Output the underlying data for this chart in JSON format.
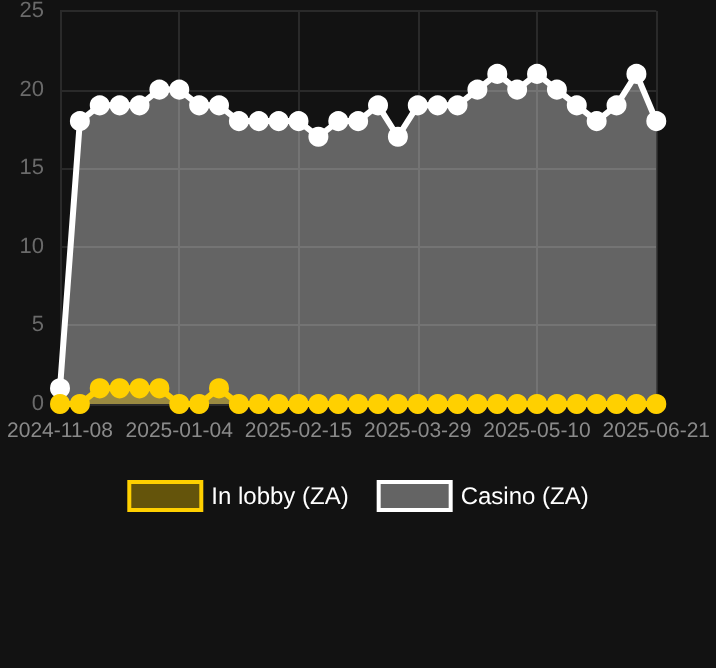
{
  "chart_data": {
    "type": "area",
    "categories": [
      "2024-11-08",
      null,
      null,
      null,
      null,
      null,
      "2025-01-04",
      null,
      null,
      null,
      null,
      null,
      "2025-02-15",
      null,
      null,
      null,
      null,
      null,
      "2025-03-29",
      null,
      null,
      null,
      null,
      null,
      "2025-05-10",
      null,
      null,
      null,
      null,
      null,
      "2025-06-21"
    ],
    "series": [
      {
        "name": "In lobby (ZA)",
        "color": "#ffd000",
        "values": [
          0,
          0,
          1,
          1,
          1,
          1,
          0,
          0,
          1,
          0,
          0,
          0,
          0,
          0,
          0,
          0,
          0,
          0,
          0,
          0,
          0,
          0,
          0,
          0,
          0,
          0,
          0,
          0,
          0,
          0,
          0
        ]
      },
      {
        "name": "Casino (ZA)",
        "color": "#ffffff",
        "values": [
          1,
          18,
          19,
          19,
          19,
          20,
          20,
          19,
          19,
          18,
          18,
          18,
          18,
          17,
          18,
          18,
          19,
          17,
          19,
          19,
          19,
          20,
          21,
          20,
          21,
          20,
          19,
          18,
          19,
          21,
          18
        ]
      }
    ],
    "ylim": [
      0,
      25
    ],
    "yticks": [
      0,
      5,
      10,
      15,
      20,
      25
    ],
    "grid": true,
    "legend": "bottom",
    "marker": "circle",
    "line_style": "solid"
  }
}
